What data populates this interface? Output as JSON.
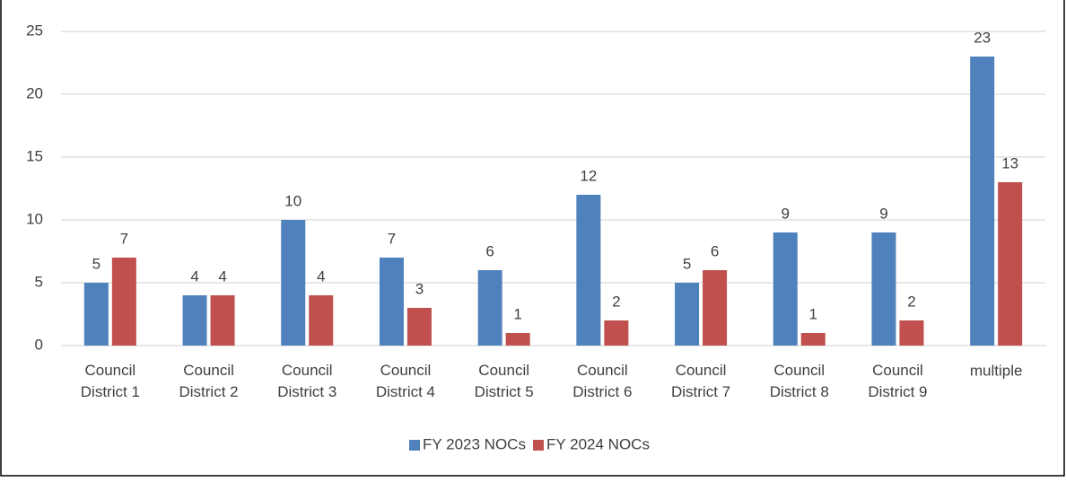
{
  "chart_data": {
    "type": "bar",
    "categories": [
      "Council District 1",
      "Council District 2",
      "Council District 3",
      "Council District 4",
      "Council District 5",
      "Council District 6",
      "Council District 7",
      "Council District 8",
      "Council District 9",
      "multiple"
    ],
    "series": [
      {
        "name": "FY 2023 NOCs",
        "color": "#4f81bd",
        "values": [
          5,
          4,
          10,
          7,
          6,
          12,
          5,
          9,
          9,
          23
        ]
      },
      {
        "name": "FY 2024 NOCs",
        "color": "#c0504d",
        "values": [
          7,
          4,
          4,
          3,
          1,
          2,
          6,
          1,
          2,
          13
        ]
      }
    ],
    "ylim": [
      0,
      25
    ],
    "yticks": [
      0,
      5,
      10,
      15,
      20,
      25
    ],
    "grid": true,
    "legend": "bottom"
  }
}
